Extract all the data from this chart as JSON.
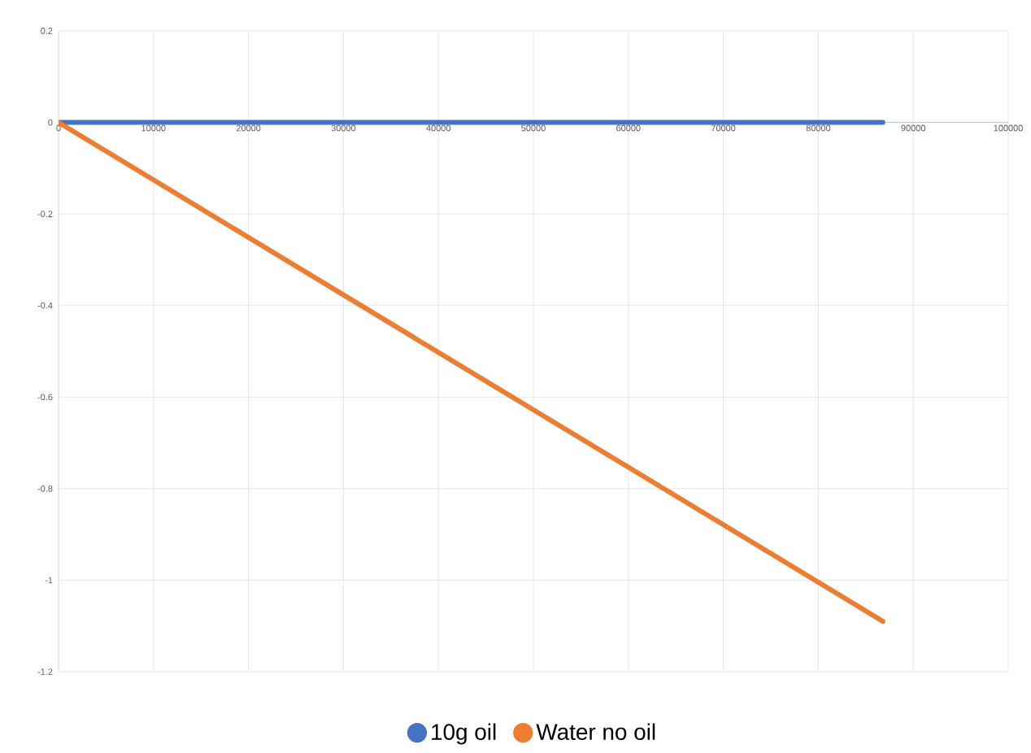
{
  "chart_data": {
    "type": "line",
    "x": [
      0,
      86800
    ],
    "series": [
      {
        "name": "10g oil",
        "color": "#4472c4",
        "values": [
          0,
          0
        ]
      },
      {
        "name": "Water no oil",
        "color": "#ed7d31",
        "values": [
          0,
          -1.09
        ]
      }
    ],
    "xlim": [
      0,
      100000
    ],
    "xticks": [
      0,
      10000,
      20000,
      30000,
      40000,
      50000,
      60000,
      70000,
      80000,
      90000,
      100000
    ],
    "ylim": [
      -1.2,
      0.2
    ],
    "yticks": [
      0.2,
      0,
      -0.2,
      -0.4,
      -0.6,
      -0.8,
      -1,
      -1.2
    ],
    "grid": true,
    "legend": "bottom",
    "marker": "none",
    "line_style": "solid"
  }
}
